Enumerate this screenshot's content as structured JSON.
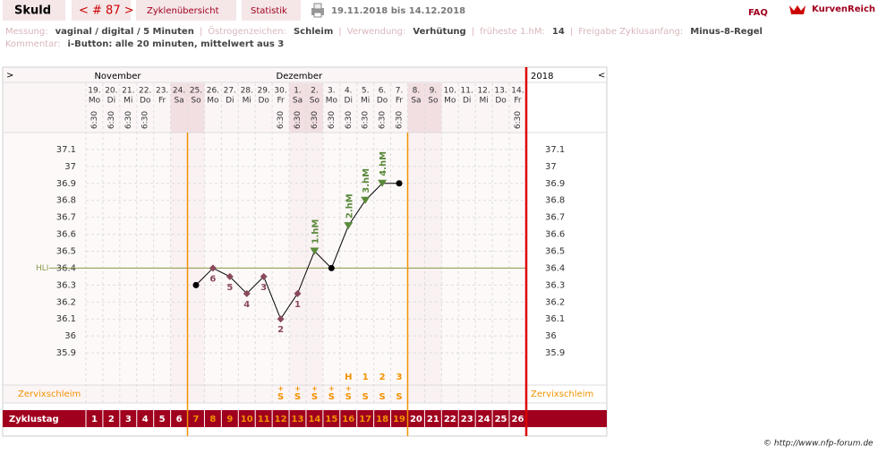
{
  "header": {
    "name": "Skuld",
    "cycle": "< # 87 >",
    "tabs": [
      "Zyklenübersicht",
      "Statistik"
    ],
    "date_range": "19.11.2018 bis 14.12.2018",
    "faq": "FAQ",
    "logo": "KurvenReich"
  },
  "info": {
    "line1": [
      {
        "label": "Messung:",
        "value": "vaginal / digital / 5 Minuten"
      },
      {
        "label": "Östrogenzeichen:",
        "value": "Schleim"
      },
      {
        "label": "Verwendung:",
        "value": "Verhütung"
      },
      {
        "label": "früheste 1.hM:",
        "value": "14"
      },
      {
        "label": "Freigabe Zyklusanfang:",
        "value": "Minus-8-Regel"
      }
    ],
    "line2": [
      {
        "label": "Kommentar:",
        "value": "i-Button: alle 20 minuten, mittelwert aus 3"
      }
    ]
  },
  "chart_data": {
    "type": "line",
    "year": "2018",
    "nav_left": ">",
    "nav_right": "<",
    "months": [
      "November",
      "Dezember"
    ],
    "dates": [
      "19.",
      "20.",
      "21.",
      "22.",
      "23.",
      "24.",
      "25.",
      "26.",
      "27.",
      "28.",
      "29.",
      "30.",
      "1.",
      "2.",
      "3.",
      "4.",
      "5.",
      "6.",
      "7.",
      "8.",
      "9.",
      "10.",
      "11.",
      "12.",
      "13.",
      "14."
    ],
    "weekdays": [
      "Mo",
      "Di",
      "Mi",
      "Do",
      "Fr",
      "Sa",
      "So",
      "Mo",
      "Di",
      "Mi",
      "Do",
      "Fr",
      "Sa",
      "So",
      "Mo",
      "Di",
      "Mi",
      "Do",
      "Fr",
      "Sa",
      "So",
      "Mo",
      "Di",
      "Mi",
      "Do",
      "Fr"
    ],
    "times": [
      "6:30",
      "6:30",
      "6:30",
      "6:30",
      null,
      null,
      null,
      null,
      null,
      null,
      null,
      "6:30",
      "6:30",
      "6:30",
      "6:30",
      "6:30",
      "6:30",
      "6:30",
      "6:30",
      null,
      null,
      null,
      null,
      null,
      null,
      "6:30"
    ],
    "values": [
      null,
      null,
      null,
      null,
      null,
      null,
      36.3,
      36.4,
      36.35,
      36.25,
      36.35,
      36.1,
      36.25,
      36.5,
      36.4,
      36.65,
      36.8,
      36.9,
      36.9,
      null,
      null,
      null,
      null,
      null,
      null,
      null
    ],
    "markers": [
      null,
      null,
      null,
      null,
      null,
      null,
      "dot",
      "diamond",
      "diamond",
      "diamond",
      "diamond",
      "diamond",
      "diamond",
      "triangle",
      "dot",
      "triangle",
      "triangle",
      "triangle",
      "dot",
      null,
      null,
      null,
      null,
      null,
      null,
      null
    ],
    "point_labels": [
      null,
      null,
      null,
      null,
      null,
      null,
      null,
      "6",
      "5",
      "4",
      "3",
      "2",
      "1",
      null,
      null,
      null,
      null,
      null,
      null,
      null,
      null,
      null,
      null,
      null,
      null,
      null
    ],
    "annotations": [
      null,
      null,
      null,
      null,
      null,
      null,
      null,
      null,
      null,
      null,
      null,
      null,
      null,
      "1.hM",
      null,
      "2.hM",
      "3.hM",
      "4.hM",
      null,
      null,
      null,
      null,
      null,
      null,
      null,
      null
    ],
    "ylim": [
      35.8,
      37.2
    ],
    "yticks": [
      35.9,
      36,
      36.1,
      36.2,
      36.3,
      36.4,
      36.5,
      36.6,
      36.7,
      36.8,
      36.9,
      37,
      37.1
    ],
    "hli": 36.4,
    "hli_label": "HLI",
    "color": "#000000",
    "grid": true,
    "cervix": {
      "label": "Zervixschleim",
      "symbols": [
        null,
        null,
        null,
        null,
        null,
        null,
        null,
        null,
        null,
        null,
        null,
        "S",
        "S",
        "S",
        "S",
        "S",
        "S",
        "S",
        "S",
        null,
        null,
        null,
        null,
        null,
        null,
        null
      ],
      "plus": [
        null,
        null,
        null,
        null,
        null,
        null,
        null,
        null,
        null,
        null,
        null,
        "+",
        "+",
        "+",
        "+",
        "+",
        null,
        null,
        null,
        null,
        null,
        null,
        null,
        null,
        null,
        null
      ],
      "above": [
        null,
        null,
        null,
        null,
        null,
        null,
        null,
        null,
        null,
        null,
        null,
        null,
        null,
        null,
        null,
        "H",
        "1",
        "2",
        "3",
        null,
        null,
        null,
        null,
        null,
        null,
        null
      ]
    },
    "cycle_label": "Zyklustag",
    "cycle_days": [
      1,
      2,
      3,
      4,
      5,
      6,
      7,
      8,
      9,
      10,
      11,
      12,
      13,
      14,
      15,
      16,
      17,
      18,
      19,
      20,
      21,
      22,
      23,
      24,
      25,
      26
    ]
  },
  "footer": "© http://www.nfp-forum.de"
}
